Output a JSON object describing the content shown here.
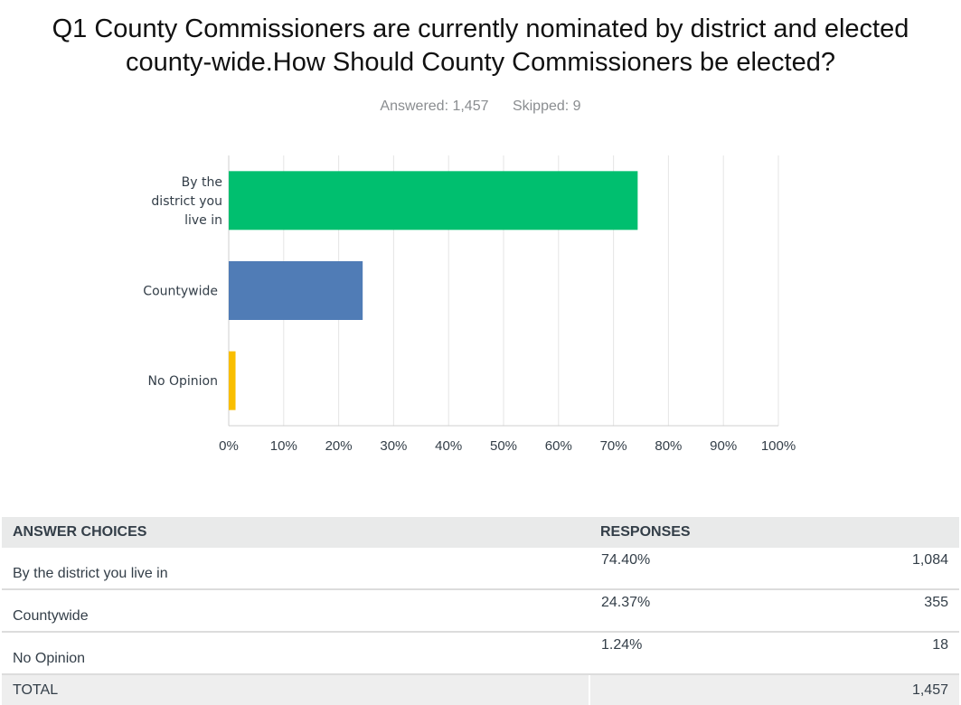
{
  "title_lines": [
    "Q1 County Commissioners are currently nominated by district and elected",
    "county-wide.How Should County Commissioners be elected?"
  ],
  "answered_text": "Answered: 1,457",
  "skipped_text": "Skipped: 9",
  "chart_data": {
    "type": "bar",
    "orientation": "horizontal",
    "categories": [
      [
        "By the",
        "district you",
        "live in"
      ],
      [
        "Countywide"
      ],
      [
        "No Opinion"
      ]
    ],
    "values": [
      74.4,
      24.37,
      1.24
    ],
    "colors": [
      "#00bf6f",
      "#507cb6",
      "#f9be00"
    ],
    "xlim": [
      0,
      100
    ],
    "x_ticks": [
      "0%",
      "10%",
      "20%",
      "30%",
      "40%",
      "50%",
      "60%",
      "70%",
      "80%",
      "90%",
      "100%"
    ],
    "grid": true
  },
  "table": {
    "headers": {
      "choices": "ANSWER CHOICES",
      "responses": "RESPONSES"
    },
    "rows": [
      {
        "choice": "By the district you live in",
        "percent": "74.40%",
        "count": "1,084"
      },
      {
        "choice": "Countywide",
        "percent": "24.37%",
        "count": "355"
      },
      {
        "choice": "No Opinion",
        "percent": "1.24%",
        "count": "18"
      }
    ],
    "total": {
      "label": "TOTAL",
      "count": "1,457"
    }
  }
}
